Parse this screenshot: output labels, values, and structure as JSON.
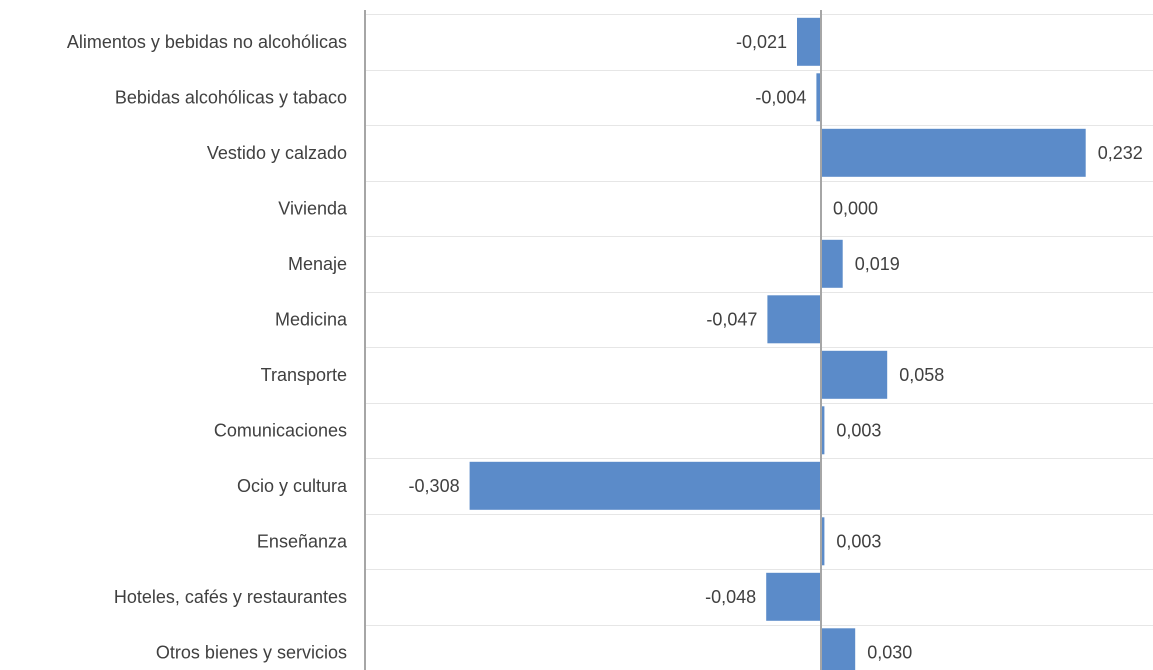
{
  "chart_data": {
    "type": "bar",
    "orientation": "horizontal",
    "categories": [
      "Alimentos y bebidas no alcohólicas",
      "Bebidas alcohólicas y tabaco",
      "Vestido y calzado",
      "Vivienda",
      "Menaje",
      "Medicina",
      "Transporte",
      "Comunicaciones",
      "Ocio y cultura",
      "Enseñanza",
      "Hoteles, cafés y restaurantes",
      "Otros bienes y servicios"
    ],
    "values": [
      -0.021,
      -0.004,
      0.232,
      0.0,
      0.019,
      -0.047,
      0.058,
      0.003,
      -0.308,
      0.003,
      -0.048,
      0.03
    ],
    "value_labels": [
      "-0,021",
      "-0,004",
      "0,232",
      "0,000",
      "0,019",
      "-0,047",
      "0,058",
      "0,003",
      "-0,308",
      "0,003",
      "-0,048",
      "0,030"
    ],
    "xlim": [
      -0.4,
      0.3
    ],
    "bar_color": "#5b8bc9",
    "grid": true
  }
}
